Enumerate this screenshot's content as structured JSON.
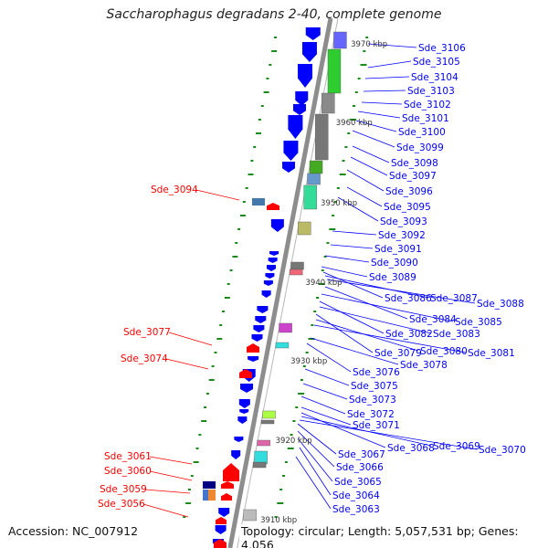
{
  "title": "Saccharophagus degradans 2-40, complete genome",
  "accession_label": "Accession: NC_007912",
  "topology_label": "Topology: circular; Length: 5,057,531 bp; Genes: 4,056",
  "colors": {
    "forward_gene": "#ff0000",
    "reverse_gene": "#0000ff",
    "backbone": "#888888",
    "tick": "#1a8a1a"
  },
  "bp_labels": [
    "3970 kbp",
    "3960 kbp",
    "3950 kbp",
    "3940 kbp",
    "3930 kbp",
    "3920 kbp",
    "3910 kbp"
  ],
  "right_genes": [
    "Sde_3106",
    "Sde_3105",
    "Sde_3104",
    "Sde_3103",
    "Sde_3102",
    "Sde_3101",
    "Sde_3100",
    "Sde_3099",
    "Sde_3098",
    "Sde_3097",
    "Sde_3096",
    "Sde_3095",
    "Sde_3093",
    "Sde_3092",
    "Sde_3091",
    "Sde_3090",
    "Sde_3089",
    "Sde_3086",
    "Sde_3087",
    "Sde_3088",
    "Sde_3084",
    "Sde_3085",
    "Sde_3082",
    "Sde_3083",
    "Sde_3079",
    "Sde_3080",
    "Sde_3081",
    "Sde_3078",
    "Sde_3076",
    "Sde_3075",
    "Sde_3073",
    "Sde_3072",
    "Sde_3071",
    "Sde_3068",
    "Sde_3069",
    "Sde_3070",
    "Sde_3067",
    "Sde_3066",
    "Sde_3065",
    "Sde_3064",
    "Sde_3063"
  ],
  "left_genes": [
    "Sde_3094",
    "Sde_3077",
    "Sde_3074",
    "Sde_3061",
    "Sde_3060",
    "Sde_3059",
    "Sde_3056"
  ]
}
